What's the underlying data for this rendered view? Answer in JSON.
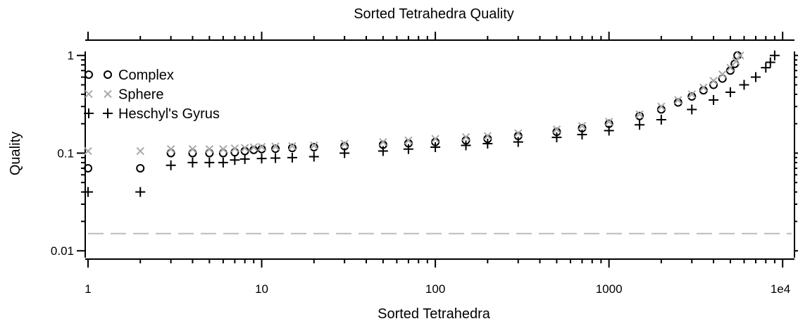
{
  "chart_data": {
    "type": "scatter",
    "title": "Sorted Tetrahedra Quality",
    "xlabel": "Sorted Tetrahedra",
    "ylabel": "Quality",
    "xscale": "log",
    "yscale": "log",
    "xlim": [
      1,
      11700
    ],
    "ylim": [
      0.0085,
      1.1
    ],
    "xticks": [
      1,
      10,
      100,
      1000,
      {
        "value": 10000,
        "label": "1e4"
      }
    ],
    "xminorticks": [
      2,
      3,
      4,
      5,
      6,
      7,
      8,
      9,
      20,
      30,
      40,
      50,
      60,
      70,
      80,
      90,
      200,
      300,
      400,
      500,
      600,
      700,
      800,
      900,
      2000,
      3000,
      4000,
      5000,
      6000,
      7000,
      8000,
      9000
    ],
    "yticks": [
      0.01,
      0.1,
      1
    ],
    "yminorticks": [
      0.02,
      0.03,
      0.04,
      0.05,
      0.06,
      0.07,
      0.08,
      0.09,
      0.2,
      0.3,
      0.4,
      0.5,
      0.6,
      0.7,
      0.8,
      0.9
    ],
    "reference_line": {
      "value": 0.015,
      "color": "#bbbbbb"
    },
    "legend": "upper left",
    "series": [
      {
        "name": "Complex",
        "color": "#000000",
        "marker": "o",
        "x": [
          1,
          2,
          3,
          4,
          5,
          6,
          7,
          8,
          9,
          10,
          12,
          15,
          20,
          30,
          50,
          70,
          100,
          150,
          200,
          300,
          500,
          700,
          1000,
          1500,
          2000,
          2500,
          3000,
          3500,
          4000,
          4500,
          5000,
          5300,
          5500
        ],
        "values": [
          0.07,
          0.07,
          0.1,
          0.1,
          0.1,
          0.1,
          0.102,
          0.105,
          0.108,
          0.11,
          0.111,
          0.113,
          0.115,
          0.118,
          0.122,
          0.126,
          0.13,
          0.135,
          0.14,
          0.15,
          0.165,
          0.18,
          0.2,
          0.24,
          0.28,
          0.33,
          0.38,
          0.44,
          0.5,
          0.58,
          0.7,
          0.82,
          1.0
        ]
      },
      {
        "name": "Sphere",
        "color": "#aaaaaa",
        "marker": "x",
        "x": [
          1,
          2,
          3,
          4,
          5,
          6,
          7,
          8,
          9,
          10,
          12,
          15,
          20,
          30,
          50,
          70,
          100,
          150,
          200,
          300,
          500,
          700,
          1000,
          1500,
          2000,
          2500,
          3000,
          3500,
          4000,
          4500,
          5000,
          5400,
          5700
        ],
        "values": [
          0.105,
          0.105,
          0.11,
          0.11,
          0.11,
          0.11,
          0.112,
          0.113,
          0.115,
          0.116,
          0.117,
          0.118,
          0.12,
          0.125,
          0.13,
          0.135,
          0.14,
          0.146,
          0.15,
          0.16,
          0.175,
          0.19,
          0.21,
          0.25,
          0.3,
          0.35,
          0.4,
          0.47,
          0.55,
          0.64,
          0.75,
          0.87,
          1.0
        ]
      },
      {
        "name": "Heschyl's Gyrus",
        "color": "#000000",
        "marker": "+",
        "x": [
          1,
          2,
          3,
          4,
          5,
          6,
          7,
          8,
          10,
          12,
          15,
          20,
          30,
          50,
          70,
          100,
          150,
          200,
          300,
          500,
          700,
          1000,
          1500,
          2000,
          3000,
          4000,
          5000,
          6000,
          7000,
          8000,
          8500,
          9000
        ],
        "values": [
          0.04,
          0.04,
          0.075,
          0.08,
          0.08,
          0.08,
          0.085,
          0.087,
          0.088,
          0.089,
          0.09,
          0.092,
          0.1,
          0.105,
          0.11,
          0.115,
          0.12,
          0.125,
          0.13,
          0.145,
          0.155,
          0.17,
          0.195,
          0.22,
          0.28,
          0.35,
          0.42,
          0.5,
          0.6,
          0.75,
          0.85,
          1.0
        ]
      }
    ]
  }
}
